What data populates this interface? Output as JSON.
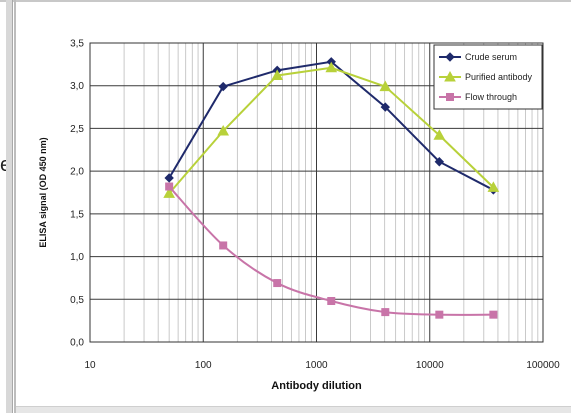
{
  "chart_data": {
    "type": "line",
    "xscale": "log",
    "xlim": [
      10,
      100000
    ],
    "ylim": [
      0.0,
      3.5
    ],
    "xlabel": "Antibody dilution",
    "ylabel": "ELISA signal (OD 450 nm)",
    "x_ticks": [
      "10",
      "100",
      "1000",
      "10000",
      "100000"
    ],
    "y_ticks": [
      "0,0",
      "0,5",
      "1,0",
      "1,5",
      "2,0",
      "2,5",
      "3,0",
      "3,5"
    ],
    "legend_position": "top-right",
    "grid": true,
    "series": [
      {
        "name": "Crude serum",
        "color": "#1f2a6b",
        "marker": "diamond",
        "x": [
          50,
          150,
          450,
          1350,
          4050,
          12150,
          36450
        ],
        "y": [
          1.92,
          2.99,
          3.18,
          3.28,
          2.75,
          2.11,
          1.78
        ]
      },
      {
        "name": "Purified antibody",
        "color": "#b8d13a",
        "marker": "triangle",
        "x": [
          50,
          150,
          450,
          1350,
          4050,
          12150,
          36450
        ],
        "y": [
          1.74,
          2.47,
          3.12,
          3.21,
          2.99,
          2.42,
          1.81
        ]
      },
      {
        "name": "Flow through",
        "color": "#c874a8",
        "marker": "square",
        "x": [
          50,
          150,
          450,
          1350,
          4050,
          12150,
          36450
        ],
        "y": [
          1.82,
          1.13,
          0.69,
          0.48,
          0.35,
          0.32,
          0.32
        ]
      }
    ]
  }
}
